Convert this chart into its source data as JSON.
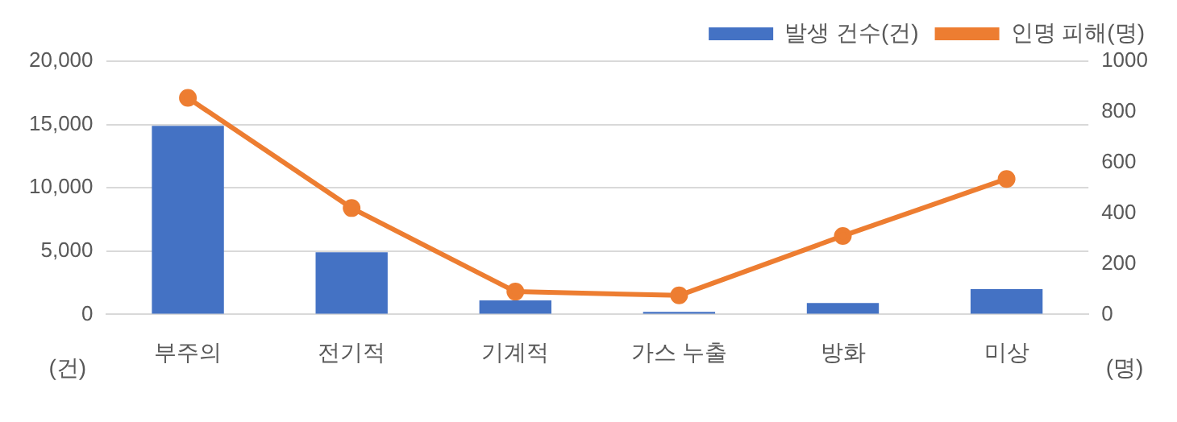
{
  "chart_data": {
    "type": "bar",
    "categories": [
      "부주의",
      "전기적",
      "기계적",
      "가스 누출",
      "방화",
      "미상"
    ],
    "series": [
      {
        "name": "발생 건수(건)",
        "color": "#4472c4",
        "values": [
          14900,
          4900,
          1100,
          200,
          900,
          2000
        ]
      },
      {
        "name": "인명 피해(명)",
        "type": "line",
        "axis": "y2",
        "color": "#ed7d31",
        "marker": "circle",
        "values": [
          855,
          420,
          90,
          75,
          310,
          535
        ]
      }
    ],
    "ylabel": "(건)",
    "y2label": "(명)",
    "ylim": [
      0,
      20000
    ],
    "yticks": [
      {
        "value": 0,
        "label": "0"
      },
      {
        "value": 5000,
        "label": "5,000"
      },
      {
        "value": 10000,
        "label": "10,000"
      },
      {
        "value": 15000,
        "label": "15,000"
      },
      {
        "value": 20000,
        "label": "20,000"
      }
    ],
    "y2lim": [
      0,
      1000
    ],
    "y2ticks": [
      0,
      200,
      400,
      600,
      800,
      1000
    ],
    "grid": "y",
    "legend": "top right"
  }
}
